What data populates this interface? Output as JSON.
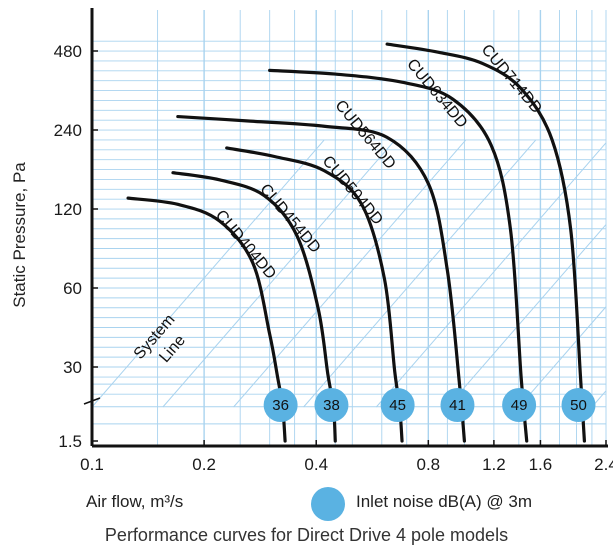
{
  "chart_data": {
    "type": "line",
    "title": "Performance curves for Direct Drive 4 pole models",
    "xlabel": "Air flow, m³/s",
    "ylabel": "Static Pressure, Pa",
    "x_scale": "log",
    "y_scale": "log",
    "xlim": [
      0.1,
      2.4
    ],
    "x_ticks": [
      "0.1",
      "0.2",
      "0.4",
      "0.8",
      "1.2",
      "1.6",
      "2.4"
    ],
    "y_ticks": [
      "1.5",
      "30",
      "60",
      "120",
      "240",
      "480"
    ],
    "grid": true,
    "system_line_label": [
      "System",
      "Line"
    ],
    "legend": {
      "marker_label": "Inlet noise dB(A) @ 3m"
    },
    "series": [
      {
        "name": "CUD404DD",
        "noise": "36",
        "x": [
          0.125,
          0.17,
          0.22,
          0.27,
          0.3,
          0.315,
          0.325,
          0.33
        ],
        "y": [
          132,
          125,
          108,
          75,
          40,
          20,
          6,
          1.5
        ]
      },
      {
        "name": "CUD454DD",
        "noise": "38",
        "x": [
          0.165,
          0.22,
          0.29,
          0.355,
          0.405,
          0.43,
          0.445,
          0.45
        ],
        "y": [
          165,
          155,
          135,
          95,
          50,
          22,
          6,
          1.5
        ]
      },
      {
        "name": "CUD504DD",
        "noise": "45",
        "x": [
          0.23,
          0.31,
          0.42,
          0.53,
          0.61,
          0.65,
          0.67,
          0.68
        ],
        "y": [
          205,
          190,
          168,
          125,
          65,
          25,
          6,
          1.5
        ]
      },
      {
        "name": "CUD564DD",
        "noise": "41",
        "x": [
          0.17,
          0.26,
          0.42,
          0.62,
          0.8,
          0.9,
          0.97,
          1.0
        ],
        "y": [
          270,
          260,
          248,
          225,
          150,
          70,
          15,
          1.5
        ]
      },
      {
        "name": "CUD634DD",
        "noise": "49",
        "x": [
          0.3,
          0.45,
          0.68,
          0.93,
          1.18,
          1.33,
          1.42,
          1.47
        ],
        "y": [
          405,
          392,
          365,
          315,
          210,
          100,
          20,
          1.5
        ]
      },
      {
        "name": "CUD714DD",
        "noise": "50",
        "x": [
          0.62,
          0.85,
          1.12,
          1.42,
          1.72,
          1.93,
          2.05,
          2.1
        ],
        "y": [
          510,
          475,
          430,
          345,
          220,
          100,
          20,
          1.5
        ]
      }
    ]
  },
  "colors": {
    "curve": "#111111",
    "grid": "#a9d3ef",
    "system_line": "#a9d3ef",
    "noise_badge": "#5ab2e2",
    "axis": "#111111"
  }
}
